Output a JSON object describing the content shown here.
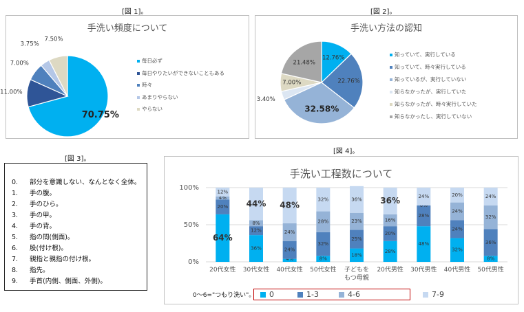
{
  "figure_labels": [
    "[図 1]。",
    "[図 2]。",
    "[図 3]。",
    "[図 4]。"
  ],
  "fig3": {
    "steps": [
      {
        "num": "0.",
        "text": "部分を意識しない、なんとなく全体。"
      },
      {
        "num": "1.",
        "text": "手の腹。"
      },
      {
        "num": "2.",
        "text": "手のひら。"
      },
      {
        "num": "3.",
        "text": "手の甲。"
      },
      {
        "num": "4.",
        "text": "手の背。"
      },
      {
        "num": "5.",
        "text": "指の間(側面)。"
      },
      {
        "num": "6.",
        "text": "股(付け根)。"
      },
      {
        "num": "7.",
        "text": "親指と親指の付け根。"
      },
      {
        "num": "8.",
        "text": "指先。"
      },
      {
        "num": "9.",
        "text": "手首(内側、側面、外側)。"
      }
    ]
  },
  "fig4_note": "0〜6=\"つもり洗い\"。",
  "chart_data": [
    {
      "type": "pie",
      "title": "手洗い頻度について",
      "labels": [
        "毎日必ず",
        "毎日やりたいができないこともある",
        "時々",
        "あまりやらない",
        "やらない"
      ],
      "values": [
        70.75,
        11.0,
        7.0,
        3.75,
        7.5
      ],
      "value_labels": [
        "70.75%",
        "11.00%",
        "7.00%",
        "3.75%",
        "7.50%"
      ],
      "colors": [
        "#00b0f0",
        "#2f5597",
        "#4f81bd",
        "#b4c7e7",
        "#ddd9c3"
      ],
      "legend": "right"
    },
    {
      "type": "pie",
      "title": "手洗い方法の認知",
      "labels": [
        "知っていて、実行している",
        "知っていて、時々実行している",
        "知っているが、実行していない",
        "知らなかったが、実行していた",
        "知らなかったが、時々実行していた",
        "知らなかったし、実行していない"
      ],
      "values": [
        12.76,
        22.76,
        32.58,
        3.4,
        7.0,
        21.48
      ],
      "value_labels": [
        "12.76%",
        "22.76%",
        "32.58%",
        "3.40%",
        "7.00%",
        "21.48%"
      ],
      "colors": [
        "#00b0f0",
        "#4f81bd",
        "#95b3d7",
        "#dce6f2",
        "#ddd9c3",
        "#a6a6a6"
      ],
      "legend": "right"
    },
    {
      "type": "bar",
      "stacked": "percent",
      "title": "手洗い工程数について",
      "categories": [
        "20代女性",
        "30代女性",
        "40代女性",
        "50代女性",
        "子どもをもつ母親",
        "20代男性",
        "30代男性",
        "40代男性",
        "50代男性"
      ],
      "category_lines": [
        [
          "20代女性"
        ],
        [
          "30代女性"
        ],
        [
          "40代女性"
        ],
        [
          "50代女性"
        ],
        [
          "子どもを",
          "もつ母親"
        ],
        [
          "20代男性"
        ],
        [
          "30代男性"
        ],
        [
          "40代男性"
        ],
        [
          "50代男性"
        ]
      ],
      "series": [
        {
          "name": "0",
          "color": "#00b0f0",
          "values": [
            64,
            36,
            4,
            8,
            18,
            28,
            48,
            32,
            8
          ]
        },
        {
          "name": "1-3",
          "color": "#4f81bd",
          "values": [
            20,
            12,
            24,
            32,
            25,
            20,
            28,
            24,
            36
          ]
        },
        {
          "name": "4-6",
          "color": "#95b3d7",
          "values": [
            4,
            8,
            24,
            28,
            23,
            16,
            0,
            24,
            32
          ]
        },
        {
          "name": "7-9",
          "color": "#c6d9f1",
          "values": [
            12,
            44,
            48,
            32,
            36,
            36,
            24,
            20,
            24
          ]
        }
      ],
      "yticks": [
        "0%",
        "50%",
        "100%"
      ],
      "ylim": [
        0,
        100
      ],
      "big_labels": [
        {
          "cat": 0,
          "series": 0,
          "text": "64%"
        },
        {
          "cat": 1,
          "series": 3,
          "text": "44%"
        },
        {
          "cat": 2,
          "series": 3,
          "text": "48%"
        },
        {
          "cat": 5,
          "series": 3,
          "text": "36%"
        }
      ],
      "legend": "bottom"
    }
  ]
}
